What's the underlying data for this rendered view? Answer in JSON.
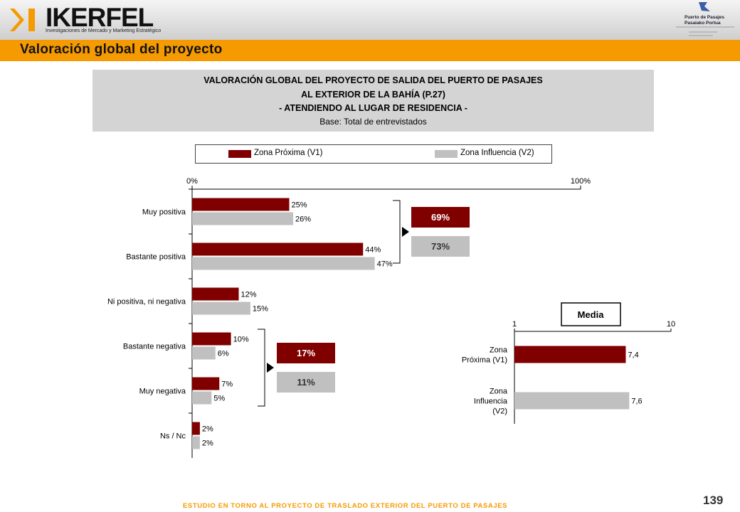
{
  "brand": {
    "name": "IKERFEL",
    "tagline": "Investigaciones de Mercado y Marketing Estratégico"
  },
  "port_logo": {
    "line1": "Puerto de Pasajes",
    "line2": "Pasaiako Portua"
  },
  "header": {
    "section_title": "Valoración global del proyecto",
    "title_lines": [
      "VALORACIÓN GLOBAL DEL PROYECTO DE SALIDA DEL PUERTO DE PASAJES",
      "AL EXTERIOR DE LA BAHÍA (P.27)",
      "- ATENDIENDO AL LUGAR DE RESIDENCIA -"
    ],
    "subtitle": "Base: Total de entrevistados"
  },
  "colors": {
    "v1": "#800000",
    "v2": "#c0c0c0",
    "accent": "#f59a00"
  },
  "chart_data": [
    {
      "type": "bar",
      "orientation": "horizontal",
      "categories": [
        "Muy positiva",
        "Bastante positiva",
        "Ni positiva, ni negativa",
        "Bastante negativa",
        "Muy negativa",
        "Ns / Nc"
      ],
      "series": [
        {
          "name": "Zona Próxima (V1)",
          "values": [
            25,
            44,
            12,
            10,
            7,
            2
          ],
          "labels": [
            "25%",
            "44%",
            "12%",
            "10%",
            "7%",
            "2%"
          ]
        },
        {
          "name": "Zona Influencia (V2)",
          "values": [
            26,
            47,
            15,
            6,
            5,
            2
          ],
          "labels": [
            "26%",
            "47%",
            "15%",
            "6%",
            "5%",
            "2%"
          ]
        }
      ],
      "xlim": [
        0,
        100
      ],
      "xticks": [
        "0%",
        "100%"
      ],
      "legend": "top",
      "groups": [
        {
          "categories": [
            "Muy positiva",
            "Bastante positiva"
          ],
          "totals": [
            "69%",
            "73%"
          ]
        },
        {
          "categories": [
            "Bastante negativa",
            "Muy negativa"
          ],
          "totals": [
            "17%",
            "11%"
          ]
        }
      ]
    },
    {
      "type": "bar",
      "orientation": "horizontal",
      "title": "Media",
      "categories": [
        [
          "Zona",
          "Próxima (V1)"
        ],
        [
          "Zona",
          "Influencia",
          "(V2)"
        ]
      ],
      "values": [
        7.4,
        7.6
      ],
      "labels": [
        "7,4",
        "7,6"
      ],
      "xlim": [
        1,
        10
      ],
      "xticks": [
        "1",
        "10"
      ]
    }
  ],
  "footer": {
    "text": "ESTUDIO EN TORNO AL PROYECTO DE TRASLADO EXTERIOR DEL PUERTO DE PASAJES",
    "page": "139"
  }
}
